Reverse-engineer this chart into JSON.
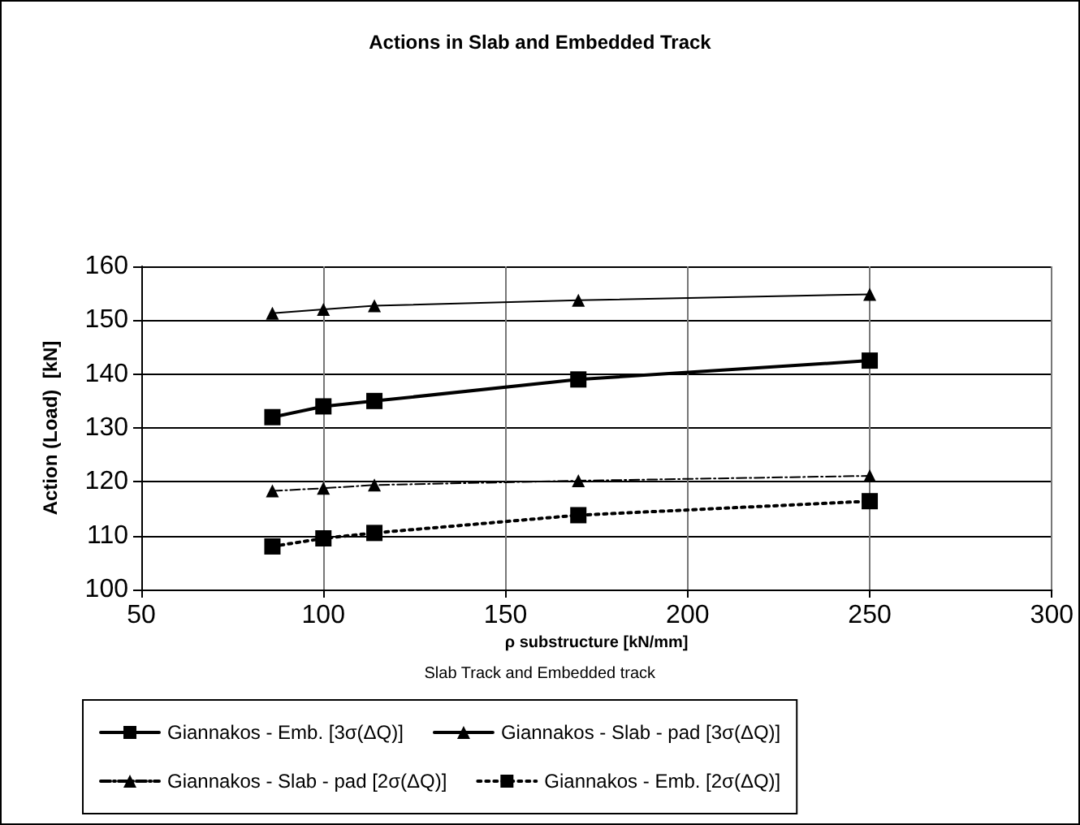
{
  "chart_data": {
    "type": "line",
    "title": "Actions in Slab and Embedded Track",
    "xlabel": "ρ substructure [kN/mm]",
    "ylabel": "Action (Load)  [kN]",
    "annotations": [
      "Slab Track and Embedded track"
    ],
    "x": [
      86,
      100,
      114,
      170,
      250
    ],
    "series": [
      {
        "name": "Giannakos - Emb. [3σ(ΔQ)]",
        "color": "#000000",
        "marker": "square",
        "line_style": "solid",
        "values": [
          132,
          134,
          135,
          139,
          142.5
        ]
      },
      {
        "name": "Giannakos - Slab - pad [3σ(ΔQ)]",
        "color": "#000000",
        "marker": "triangle",
        "line_style": "solid",
        "values": [
          151.3,
          152,
          152.7,
          153.7,
          154.8
        ]
      },
      {
        "name": "Giannakos - Slab - pad [2σ(ΔQ)]",
        "color": "#000000",
        "marker": "triangle",
        "line_style": "dashed",
        "values": [
          118.3,
          118.8,
          119.4,
          120.2,
          121.1
        ]
      },
      {
        "name": "Giannakos - Emb. [2σ(ΔQ)]",
        "color": "#000000",
        "marker": "square",
        "line_style": "dotted",
        "values": [
          108,
          109.5,
          110.5,
          113.8,
          116.4
        ]
      }
    ],
    "xlim": [
      50,
      300
    ],
    "xticks": [
      50,
      100,
      150,
      200,
      250,
      300
    ],
    "ylim": [
      100,
      160
    ],
    "yticks": [
      100,
      110,
      120,
      130,
      140,
      150,
      160
    ],
    "grid": true,
    "legend": "bottom"
  }
}
